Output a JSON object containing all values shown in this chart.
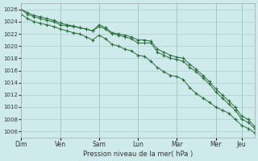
{
  "title": "",
  "xlabel": "Pression niveau de la mer( hPa )",
  "ylabel": "",
  "bg_color": "#ceeaea",
  "grid_color": "#aed0d0",
  "line_color": "#2d6e3e",
  "ylim": [
    1005,
    1027
  ],
  "yticks": [
    1006,
    1008,
    1010,
    1012,
    1014,
    1016,
    1018,
    1020,
    1022,
    1024,
    1026
  ],
  "day_labels": [
    "Dim",
    "Ven",
    "Sam",
    "Lun",
    "Mar",
    "Mer",
    "Jeu"
  ],
  "day_x": [
    0,
    6,
    12,
    18,
    24,
    30,
    34
  ],
  "total_points": 37,
  "series1": [
    1026.0,
    1025.2,
    1024.8,
    1024.5,
    1024.2,
    1024.0,
    1023.5,
    1023.3,
    1023.2,
    1023.0,
    1022.8,
    1022.5,
    1023.2,
    1022.8,
    1022.0,
    1021.8,
    1021.5,
    1021.2,
    1020.5,
    1020.5,
    1020.5,
    1019.0,
    1018.5,
    1018.0,
    1017.8,
    1017.5,
    1016.5,
    1015.8,
    1014.8,
    1013.8,
    1012.5,
    1011.5,
    1010.5,
    1009.5,
    1008.0,
    1007.5,
    1006.5
  ],
  "series2": [
    1025.2,
    1024.5,
    1024.0,
    1023.7,
    1023.5,
    1023.2,
    1022.8,
    1022.5,
    1022.2,
    1022.0,
    1021.5,
    1021.0,
    1021.8,
    1021.2,
    1020.3,
    1020.0,
    1019.5,
    1019.2,
    1018.5,
    1018.3,
    1017.5,
    1016.5,
    1015.8,
    1015.2,
    1015.0,
    1014.5,
    1013.2,
    1012.2,
    1011.5,
    1010.8,
    1010.0,
    1009.5,
    1009.0,
    1008.0,
    1007.0,
    1006.5,
    1005.8
  ],
  "series3": [
    1026.0,
    1025.5,
    1025.0,
    1024.8,
    1024.5,
    1024.2,
    1023.8,
    1023.5,
    1023.3,
    1023.0,
    1022.8,
    1022.5,
    1023.5,
    1023.0,
    1022.2,
    1022.0,
    1021.8,
    1021.5,
    1021.0,
    1021.0,
    1020.8,
    1019.5,
    1019.0,
    1018.5,
    1018.2,
    1018.0,
    1017.0,
    1016.2,
    1015.2,
    1014.2,
    1013.0,
    1012.0,
    1011.0,
    1010.0,
    1008.5,
    1008.0,
    1006.8
  ]
}
